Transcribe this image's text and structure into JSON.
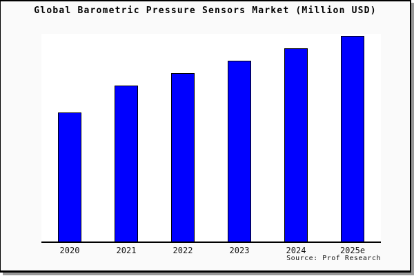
{
  "window": {
    "background": "#fafafa",
    "plot_background": "#ffffff",
    "frame_border_color": "#000000",
    "shadow_color": "#999999"
  },
  "chart_data": {
    "type": "bar",
    "title": "Global Barometric Pressure Sensors Market (Million USD)",
    "categories": [
      "2020",
      "2021",
      "2022",
      "2023",
      "2024",
      "2025e"
    ],
    "values": [
      62,
      75,
      81,
      87,
      93,
      99
    ],
    "xlabel": "",
    "ylabel": "",
    "ylim": [
      0,
      100
    ],
    "y_axis_visible": false,
    "grid": false,
    "legend": false,
    "bar_color": "#0000ff",
    "bar_edge_color": "#000000"
  },
  "footer": {
    "source": "Source: Prof Research"
  }
}
